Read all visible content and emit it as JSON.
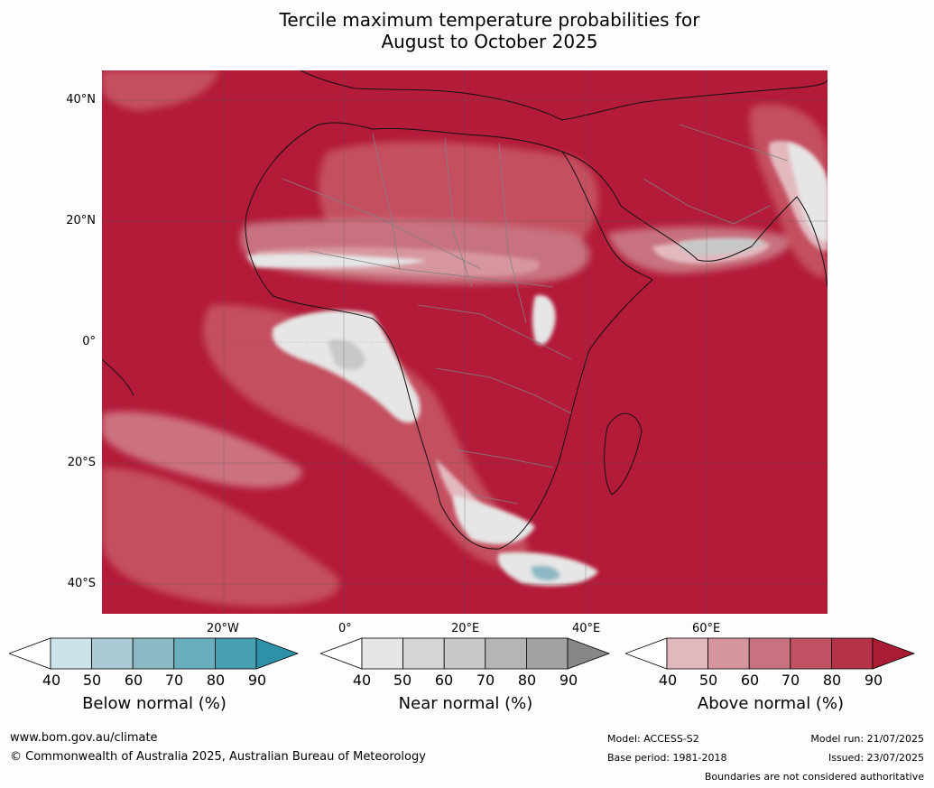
{
  "title_line1": "Tercile maximum temperature probabilities for",
  "title_line2": "August to October 2025",
  "lat_labels": [
    "40°N",
    "20°N",
    "0°",
    "20°S",
    "40°S"
  ],
  "lon_labels": [
    "20°W",
    "0°",
    "20°E",
    "40°E",
    "60°E"
  ],
  "colorbars": [
    {
      "label": "Below normal (%)",
      "ticks": [
        "40",
        "50",
        "60",
        "70",
        "80",
        "90"
      ],
      "colors": [
        "#ffffff",
        "#cce3ea",
        "#aacbd3",
        "#8bb8c4",
        "#6aaebd",
        "#489fb2",
        "#2e91a8"
      ]
    },
    {
      "label": "Near normal (%)",
      "ticks": [
        "40",
        "50",
        "60",
        "70",
        "80",
        "90"
      ],
      "colors": [
        "#ffffff",
        "#e6e6e6",
        "#d6d6d6",
        "#c8c8c8",
        "#b5b5b5",
        "#a2a2a2",
        "#878787"
      ]
    },
    {
      "label": "Above normal (%)",
      "ticks": [
        "40",
        "50",
        "60",
        "70",
        "80",
        "90"
      ],
      "colors": [
        "#ffffff",
        "#e2b8bf",
        "#d4959f",
        "#c8727f",
        "#c05162",
        "#b53347",
        "#aa1b35"
      ]
    }
  ],
  "footer": {
    "website": "www.bom.gov.au/climate",
    "copyright": "© Commonwealth of Australia 2025, Australian Bureau of Meteorology",
    "model": "Model: ACCESS-S2",
    "base_period": "Base period: 1981-2018",
    "model_run": "Model run: 21/07/2025",
    "issued": "Issued: 23/07/2025",
    "boundaries": "Boundaries are not considered authoritative"
  },
  "map_colors": {
    "above_90": "#b31b38",
    "above_80": "#bc3449",
    "above_70": "#c4505f",
    "above_60": "#cc727e",
    "above_50": "#d7969f",
    "above_40": "#e3b9bf",
    "near": "#e6e6e6",
    "near_dark": "#c8c8c8",
    "below": "#489fb2"
  }
}
